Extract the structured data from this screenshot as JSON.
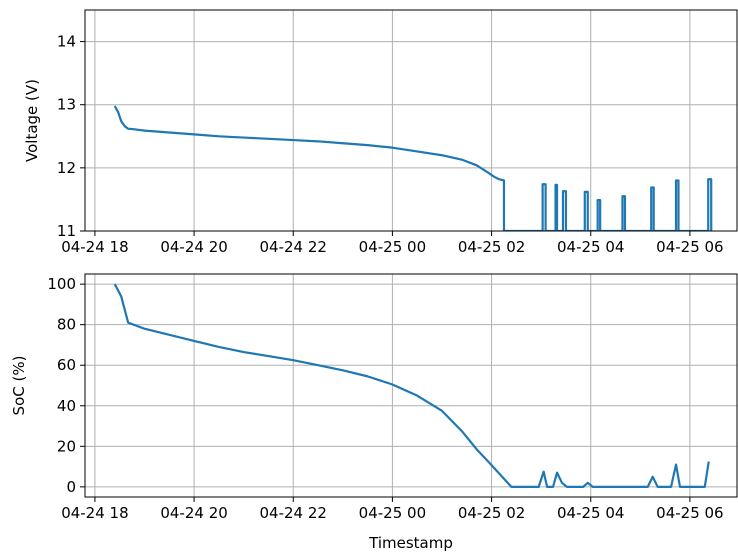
{
  "figure": {
    "xlabel": "Timestamp",
    "x_tick_labels": [
      "04-24 18",
      "04-24 20",
      "04-24 22",
      "04-25 00",
      "04-25 02",
      "04-25 04",
      "04-25 06"
    ]
  },
  "chart_data": [
    {
      "type": "line",
      "title": "",
      "xlabel": "",
      "ylabel": "Voltage (V)",
      "x_unit": "hours since 04-24 00:00",
      "xlim": [
        41.8,
        54.95
      ],
      "ylim": [
        11,
        14.5
      ],
      "yticks": [
        11,
        12,
        13,
        14
      ],
      "grid": true,
      "color": "#1f77b4",
      "series": [
        {
          "x": [
            42.4,
            42.47,
            42.53,
            42.6,
            42.67,
            42.8,
            43,
            43.5,
            44,
            44.5,
            45,
            45.5,
            46,
            46.5,
            47,
            47.5,
            48,
            48.5,
            49,
            49.4,
            49.7,
            49.9,
            50.05,
            50.15,
            50.25,
            50.25,
            50.29,
            50.29,
            51.03,
            51.03,
            51.09,
            51.09,
            51.29,
            51.29,
            51.32,
            51.32,
            51.44,
            51.44,
            51.5,
            51.5,
            51.88,
            51.88,
            51.94,
            51.94,
            52.14,
            52.14,
            52.19,
            52.19,
            52.64,
            52.64,
            52.69,
            52.69,
            53.22,
            53.22,
            53.27,
            53.27,
            53.72,
            53.72,
            53.77,
            53.77,
            54.37,
            54.37,
            54.43,
            54.43
          ],
          "y": [
            12.98,
            12.88,
            12.74,
            12.66,
            12.62,
            12.61,
            12.59,
            12.56,
            12.53,
            12.5,
            12.48,
            12.46,
            12.44,
            12.42,
            12.39,
            12.36,
            12.32,
            12.26,
            12.2,
            12.13,
            12.04,
            11.94,
            11.86,
            11.82,
            11.8,
            11.0,
            11.0,
            11.0,
            11.0,
            11.74,
            11.74,
            11.0,
            11.0,
            11.73,
            11.73,
            11.0,
            11.0,
            11.63,
            11.63,
            11.0,
            11.0,
            11.62,
            11.62,
            11.0,
            11.0,
            11.49,
            11.49,
            11.0,
            11.0,
            11.55,
            11.55,
            11.0,
            11.0,
            11.69,
            11.69,
            11.0,
            11.0,
            11.8,
            11.8,
            11.0,
            11.0,
            11.82,
            11.82,
            11.0
          ]
        }
      ]
    },
    {
      "type": "line",
      "title": "",
      "xlabel": "Timestamp",
      "ylabel": "SoC (%)",
      "x_unit": "hours since 04-24 00:00",
      "xlim": [
        41.8,
        54.95
      ],
      "ylim": [
        -5,
        105
      ],
      "yticks": [
        0,
        20,
        40,
        60,
        80,
        100
      ],
      "grid": true,
      "color": "#1f77b4",
      "series": [
        {
          "x": [
            42.4,
            42.53,
            42.67,
            43,
            43.5,
            44,
            44.5,
            45,
            45.5,
            46,
            46.5,
            47,
            47.5,
            48,
            48.5,
            49,
            49.4,
            49.7,
            49.95,
            50.1,
            50.25,
            50.4,
            50.6,
            50.95,
            51.05,
            51.12,
            51.24,
            51.32,
            51.42,
            51.52,
            51.62,
            51.85,
            51.94,
            52.04,
            52.12,
            53.15,
            53.25,
            53.35,
            53.62,
            53.72,
            53.8,
            54.3,
            54.38
          ],
          "y": [
            100,
            94,
            81,
            78,
            75,
            72,
            69,
            66.5,
            64.5,
            62.5,
            60,
            57.5,
            54.5,
            50.5,
            45,
            37.5,
            27.5,
            18.5,
            12,
            8,
            4,
            0,
            0,
            0,
            7.5,
            0,
            0,
            7,
            2,
            0,
            0,
            0,
            2,
            0,
            0,
            0,
            5,
            0,
            0,
            11,
            0,
            0,
            12.5
          ]
        }
      ]
    }
  ]
}
